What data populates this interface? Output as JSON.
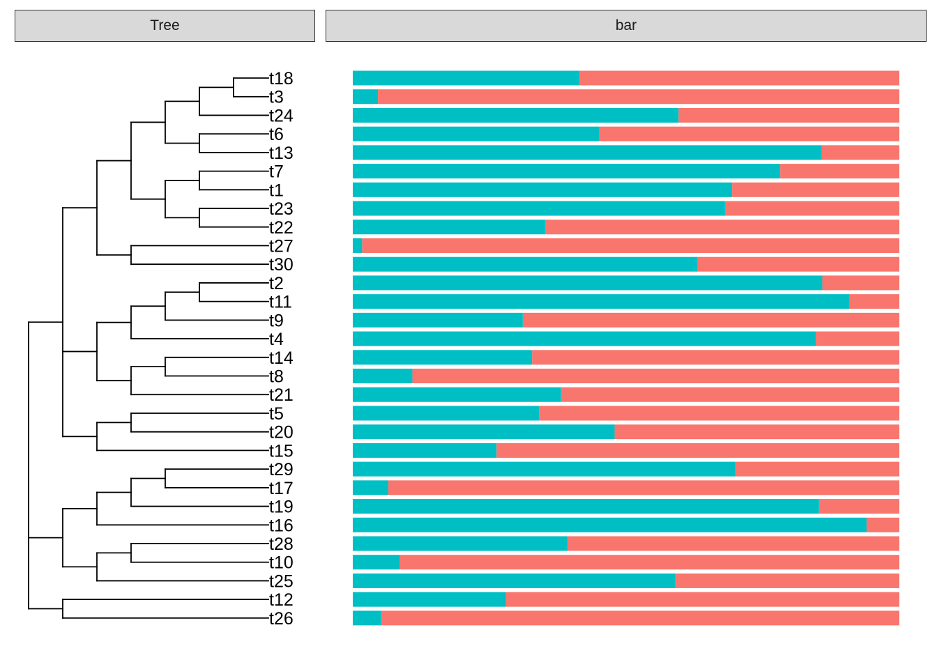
{
  "panels": {
    "tree_title": "Tree",
    "bar_title": "bar"
  },
  "colors": {
    "tree_line": "#000000",
    "bar_primary": "#00BFC4",
    "bar_secondary": "#F8766D",
    "strip_fill": "#D9D9D9",
    "strip_border": "#333333"
  },
  "chart_data": {
    "type": "bar",
    "orientation": "horizontal",
    "stacked": true,
    "xlim": [
      0,
      1
    ],
    "grid": false,
    "legend": "none",
    "categories": [
      "t18",
      "t3",
      "t24",
      "t6",
      "t13",
      "t7",
      "t1",
      "t23",
      "t22",
      "t27",
      "t30",
      "t2",
      "t11",
      "t9",
      "t4",
      "t14",
      "t8",
      "t21",
      "t5",
      "t20",
      "t15",
      "t29",
      "t17",
      "t19",
      "t16",
      "t28",
      "t10",
      "t25",
      "t12",
      "t26"
    ],
    "series": [
      {
        "color": "#00BFC4",
        "values": [
          0.415,
          0.046,
          0.596,
          0.451,
          0.858,
          0.782,
          0.694,
          0.681,
          0.352,
          0.017,
          0.631,
          0.859,
          0.909,
          0.311,
          0.847,
          0.328,
          0.109,
          0.381,
          0.341,
          0.479,
          0.263,
          0.7,
          0.065,
          0.853,
          0.94,
          0.393,
          0.086,
          0.59,
          0.28,
          0.052
        ]
      },
      {
        "color": "#F8766D",
        "values": [
          0.585,
          0.954,
          0.404,
          0.549,
          0.142,
          0.218,
          0.306,
          0.319,
          0.648,
          0.983,
          0.369,
          0.141,
          0.091,
          0.689,
          0.153,
          0.672,
          0.891,
          0.619,
          0.659,
          0.521,
          0.737,
          0.3,
          0.935,
          0.147,
          0.06,
          0.607,
          0.914,
          0.41,
          0.72,
          0.948
        ]
      }
    ],
    "tree_newick": "(((((((t18,t3),t24),(t6,t13)),((t7,t1),(t23,t22))),(t27,t30)),((((t2,t11),t9),t4),((t14,t8),t21)),((t5,t20),t15)),((((t29,t17),t19),t16),((t28,t10),t25)),(t12,t26)));",
    "tree_depth": 6
  }
}
